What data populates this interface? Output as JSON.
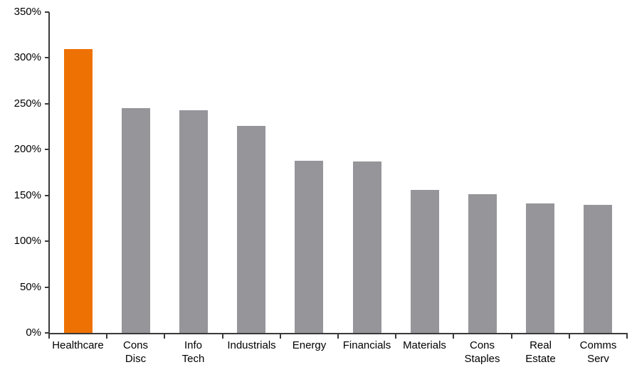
{
  "chart_data": {
    "type": "bar",
    "title": "",
    "categories": [
      "Healthcare",
      "Cons\nDisc",
      "Info\nTech",
      "Industrials",
      "Energy",
      "Financials",
      "Materials",
      "Cons\nStaples",
      "Real\nEstate",
      "Comms\nServ"
    ],
    "values": [
      310,
      245,
      243,
      226,
      188,
      187,
      156,
      151,
      141,
      140
    ],
    "value_unit": "%",
    "highlight_index": 0,
    "xlabel": "",
    "ylabel": "",
    "y_axis": {
      "min": 0,
      "max": 350,
      "tick_step": 50,
      "tick_labels": [
        "0%",
        "50%",
        "100%",
        "150%",
        "200%",
        "250%",
        "300%",
        "350%"
      ]
    },
    "grid": false,
    "legend": false,
    "colors": {
      "highlight_bar": "#EE7103",
      "default_bar": "#95959A",
      "axis": "#3A3A3A",
      "label_text": "#000000",
      "background": "#FFFFFF"
    }
  }
}
